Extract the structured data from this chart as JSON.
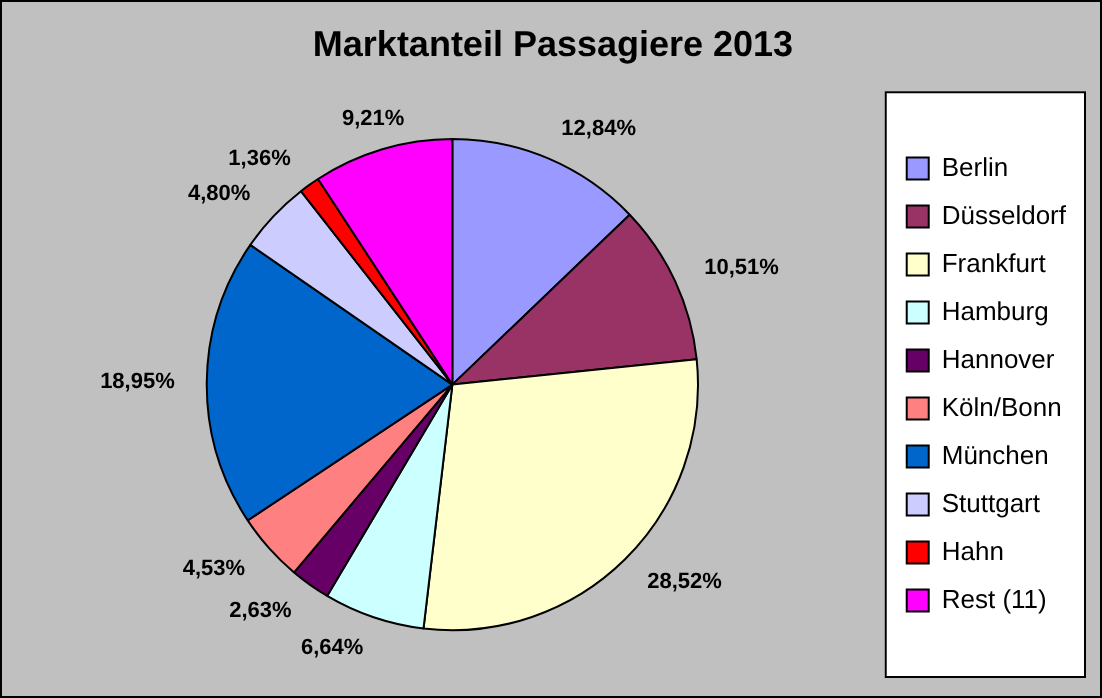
{
  "chart_data": {
    "type": "pie",
    "title": "Marktanteil Passagiere 2013",
    "categories": [
      "Berlin",
      "Düsseldorf",
      "Frankfurt",
      "Hamburg",
      "Hannover",
      "Köln/Bonn",
      "München",
      "Stuttgart",
      "Hahn",
      "Rest (11)"
    ],
    "values": [
      12.84,
      10.51,
      28.52,
      6.64,
      2.63,
      4.53,
      18.95,
      4.8,
      1.36,
      9.21
    ],
    "value_labels": [
      "12,84%",
      "10,51%",
      "28,52%",
      "6,64%",
      "2,63%",
      "4,53%",
      "18,95%",
      "4,80%",
      "1,36%",
      "9,21%"
    ],
    "colors": [
      "#9999ff",
      "#993366",
      "#ffffcc",
      "#ccffff",
      "#660066",
      "#ff8080",
      "#0066cc",
      "#ccccff",
      "#ff0000",
      "#ff00ff"
    ],
    "legend": "right"
  }
}
